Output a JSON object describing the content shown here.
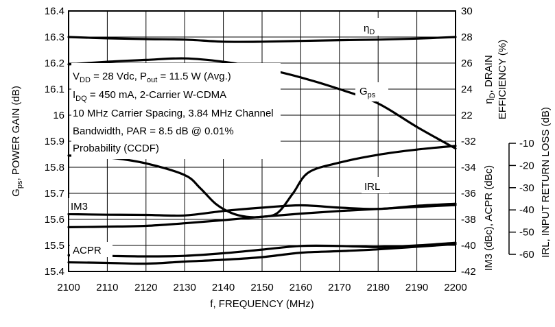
{
  "chart_data": {
    "type": "line",
    "x_ticks": [
      "2100",
      "2110",
      "2120",
      "2130",
      "2140",
      "2150",
      "2160",
      "2170",
      "2180",
      "2190",
      "2200"
    ],
    "xlim": [
      2100,
      2200
    ],
    "xlabel": "f, FREQUENCY (MHz)",
    "left_axis": {
      "label_main": "G",
      "label_sub": "ps",
      "label_rest": ", POWER GAIN (dB)",
      "ylim": [
        15.4,
        16.4
      ],
      "ticks": [
        "16.4",
        "16.3",
        "16.2",
        "16.1",
        "16",
        "15.9",
        "15.8",
        "15.7",
        "15.6",
        "15.5",
        "15.4"
      ]
    },
    "right_inner_axis": {
      "label_top_main": "η",
      "label_top_sub": "D",
      "label_top_rest1": ", DRAIN",
      "label_top_rest2": "EFFICIENCY (%)",
      "label_bottom": "IM3 (dBc), ACPR (dBc)",
      "ticks": [
        "30",
        "28",
        "26",
        "24",
        "22",
        "-32",
        "-34",
        "-36",
        "-38",
        "-40",
        "-42"
      ]
    },
    "right_outer_axis": {
      "label": "IRL, INPUT RETURN LOSS (dB)",
      "ticks": [
        "-10",
        "-20",
        "-30",
        "-40",
        "-50",
        "-60"
      ]
    },
    "annotation": {
      "line1": {
        "v": "V",
        "v_sub": "DD",
        "mid": " = 28 Vdc, P",
        "p_sub": "out",
        "end": " = 11.5 W (Avg.)"
      },
      "line2": {
        "i": "I",
        "i_sub": "DQ",
        "end": " = 450 mA, 2-Carrier W-CDMA"
      },
      "line3": "10 MHz Carrier Spacing, 3.84 MHz Channel",
      "line4": "Bandwidth, PAR = 8.5 dB @ 0.01%",
      "line5": "Probability (CCDF)"
    },
    "series": [
      {
        "name": "ηD",
        "label_main": "η",
        "label_sub": "D",
        "x": [
          2100,
          2110,
          2120,
          2130,
          2140,
          2150,
          2160,
          2170,
          2180,
          2190,
          2200
        ],
        "y_gain_units": [
          16.3,
          16.295,
          16.292,
          16.29,
          16.282,
          16.282,
          16.285,
          16.288,
          16.29,
          16.294,
          16.3
        ]
      },
      {
        "name": "Gps",
        "label_main": "G",
        "label_sub": "ps",
        "x": [
          2100,
          2110,
          2120,
          2130,
          2140,
          2150,
          2160,
          2170,
          2180,
          2190,
          2200
        ],
        "y_gain_units": [
          16.195,
          16.205,
          16.212,
          16.218,
          16.205,
          16.18,
          16.145,
          16.1,
          16.045,
          15.955,
          15.872
        ]
      },
      {
        "name": "IRL",
        "label_main": "IRL",
        "x": [
          2100,
          2110,
          2120,
          2130,
          2134,
          2138,
          2142,
          2146,
          2150,
          2154,
          2158,
          2162,
          2170,
          2180,
          2190,
          2200
        ],
        "y_gain_units": [
          15.845,
          15.838,
          15.815,
          15.77,
          15.72,
          15.66,
          15.625,
          15.61,
          15.61,
          15.625,
          15.7,
          15.78,
          15.818,
          15.848,
          15.868,
          15.882
        ]
      },
      {
        "name": "IM3 (upper)",
        "label_main": "IM3",
        "x": [
          2100,
          2110,
          2120,
          2130,
          2140,
          2150,
          2160,
          2170,
          2180,
          2190,
          2200
        ],
        "y_gain_units": [
          15.62,
          15.618,
          15.617,
          15.615,
          15.632,
          15.645,
          15.654,
          15.645,
          15.64,
          15.652,
          15.66
        ]
      },
      {
        "name": "IM3 (lower)",
        "x": [
          2100,
          2110,
          2120,
          2130,
          2140,
          2150,
          2160,
          2170,
          2180,
          2190,
          2200
        ],
        "y_gain_units": [
          15.57,
          15.572,
          15.575,
          15.585,
          15.597,
          15.61,
          15.622,
          15.632,
          15.64,
          15.648,
          15.655
        ]
      },
      {
        "name": "ACPR (upper)",
        "label_main": "ACPR",
        "x": [
          2100,
          2110,
          2120,
          2130,
          2140,
          2150,
          2160,
          2170,
          2180,
          2190,
          2200
        ],
        "y_gain_units": [
          15.462,
          15.46,
          15.458,
          15.46,
          15.47,
          15.484,
          15.498,
          15.498,
          15.494,
          15.5,
          15.51
        ]
      },
      {
        "name": "ACPR (lower)",
        "x": [
          2100,
          2110,
          2120,
          2130,
          2140,
          2150,
          2160,
          2170,
          2180,
          2190,
          2200
        ],
        "y_gain_units": [
          15.435,
          15.433,
          15.43,
          15.438,
          15.445,
          15.455,
          15.472,
          15.478,
          15.485,
          15.495,
          15.505
        ]
      }
    ]
  }
}
